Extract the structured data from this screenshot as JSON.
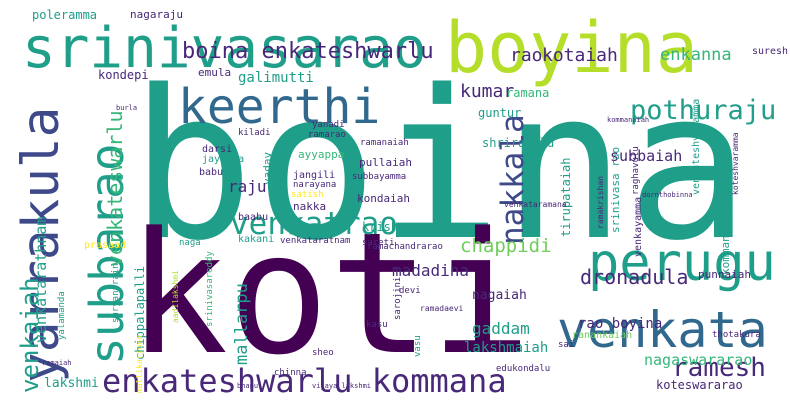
{
  "palette": {
    "background": "#ffffff",
    "purple_dark": "#440154",
    "purple": "#482878",
    "indigo": "#3e4989",
    "blue": "#31688e",
    "steel": "#26828e",
    "teal": "#1f9e89",
    "green": "#35b779",
    "lime": "#6ece58",
    "yellow_green": "#b5de2b",
    "yellow": "#fde725"
  },
  "words": [
    {
      "text": "boina",
      "color": "teal"
    },
    {
      "text": "koti",
      "color": "purple_dark"
    },
    {
      "text": "boyina",
      "color": "yellow_green"
    },
    {
      "text": "srinivasarao",
      "color": "teal"
    },
    {
      "text": "yarrakula",
      "color": "indigo"
    },
    {
      "text": "keerthi",
      "color": "blue"
    },
    {
      "text": "subbarao",
      "color": "teal"
    },
    {
      "text": "perugu",
      "color": "teal"
    },
    {
      "text": "venkata",
      "color": "blue"
    },
    {
      "text": "enkateshwarlu kommana",
      "color": "purple"
    },
    {
      "text": "venkatrao",
      "color": "teal"
    },
    {
      "text": "pothuraju",
      "color": "teal"
    },
    {
      "text": "nakkala",
      "color": "indigo"
    },
    {
      "text": "ramesh",
      "color": "purple"
    },
    {
      "text": "venkaiah",
      "color": "teal"
    },
    {
      "text": "boina enkateshwarlu",
      "color": "purple"
    },
    {
      "text": "venkateswarlu",
      "color": "green"
    },
    {
      "text": "dronadula",
      "color": "purple"
    },
    {
      "text": "nagaswararao",
      "color": "green"
    },
    {
      "text": "chappidi",
      "color": "lime"
    },
    {
      "text": "rao",
      "color": "purple"
    },
    {
      "text": "kotaiah",
      "color": "purple"
    },
    {
      "text": "enkanna",
      "color": "green"
    },
    {
      "text": "kumar",
      "color": "purple"
    },
    {
      "text": "galimutti",
      "color": "teal"
    },
    {
      "text": "venkatarathnam",
      "color": "teal"
    },
    {
      "text": "mallarpu",
      "color": "teal"
    },
    {
      "text": "gaddam",
      "color": "teal"
    },
    {
      "text": "lakshmaiah",
      "color": "teal"
    },
    {
      "text": "madadina",
      "color": "purple"
    },
    {
      "text": "rao boyina",
      "color": "purple"
    },
    {
      "text": "subbaiah",
      "color": "purple"
    },
    {
      "text": "raju",
      "color": "purple"
    },
    {
      "text": "suresh",
      "color": "purple"
    },
    {
      "text": "poleramma",
      "color": "teal"
    },
    {
      "text": "nagaraju",
      "color": "purple"
    },
    {
      "text": "kondepi",
      "color": "purple"
    },
    {
      "text": "emula",
      "color": "purple"
    },
    {
      "text": "ramana",
      "color": "green"
    },
    {
      "text": "guntur",
      "color": "teal"
    },
    {
      "text": "shriramulu",
      "color": "teal"
    },
    {
      "text": "krishna",
      "color": "teal"
    },
    {
      "text": "nagaiah",
      "color": "purple"
    },
    {
      "text": "lakshmi",
      "color": "teal"
    },
    {
      "text": "koteswararao",
      "color": "purple"
    },
    {
      "text": "chippalapalli",
      "color": "teal"
    },
    {
      "text": "ayyappa",
      "color": "green"
    },
    {
      "text": "pullaiah",
      "color": "purple"
    },
    {
      "text": "kondaiah",
      "color": "purple"
    },
    {
      "text": "tirupataiah",
      "color": "teal"
    },
    {
      "text": "srinivasa rao",
      "color": "teal"
    },
    {
      "text": "kommanaboyina",
      "color": "teal"
    },
    {
      "text": "punnaiah",
      "color": "purple"
    },
    {
      "text": "venkayamma",
      "color": "purple"
    },
    {
      "text": "venkateshvaramma",
      "color": "teal"
    },
    {
      "text": "yadav",
      "color": "teal"
    },
    {
      "text": "nakka",
      "color": "purple"
    },
    {
      "text": "jangili",
      "color": "purple"
    },
    {
      "text": "darsi",
      "color": "purple"
    },
    {
      "text": "jayamma",
      "color": "teal"
    },
    {
      "text": "babu",
      "color": "purple"
    },
    {
      "text": "baabu",
      "color": "purple"
    },
    {
      "text": "satish",
      "color": "yellow"
    },
    {
      "text": "kakani",
      "color": "teal"
    },
    {
      "text": "venkataratnam",
      "color": "purple"
    },
    {
      "text": "prasaad",
      "color": "yellow"
    },
    {
      "text": "sareti",
      "color": "purple"
    },
    {
      "text": "naga",
      "color": "teal"
    },
    {
      "text": "ranankaiah",
      "color": "lime"
    },
    {
      "text": "thotakura",
      "color": "purple"
    },
    {
      "text": "devi",
      "color": "purple"
    },
    {
      "text": "sarojini",
      "color": "purple"
    },
    {
      "text": "kasu",
      "color": "purple"
    },
    {
      "text": "vasu",
      "color": "teal"
    },
    {
      "text": "edukondalu",
      "color": "purple"
    },
    {
      "text": "chinna",
      "color": "purple"
    },
    {
      "text": "suryanarain",
      "color": "teal"
    },
    {
      "text": "srinivasareddy",
      "color": "green"
    },
    {
      "text": "kiladi",
      "color": "purple"
    },
    {
      "text": "yanadi",
      "color": "purple"
    },
    {
      "text": "ramarao",
      "color": "purple"
    },
    {
      "text": "narayana",
      "color": "purple"
    },
    {
      "text": "ramanaiah",
      "color": "purple"
    },
    {
      "text": "subbayamma",
      "color": "purple"
    },
    {
      "text": "ramachandrarao",
      "color": "purple"
    },
    {
      "text": "raghavulu",
      "color": "purple"
    },
    {
      "text": "venkataramana",
      "color": "purple"
    },
    {
      "text": "ramakrishan",
      "color": "purple"
    },
    {
      "text": "koteshvaramma",
      "color": "purple"
    },
    {
      "text": "ramadaevi",
      "color": "purple"
    },
    {
      "text": "yalamanda",
      "color": "teal"
    },
    {
      "text": "aadilakshmi",
      "color": "yellow_green"
    },
    {
      "text": "mallikarjuna",
      "color": "yellow"
    },
    {
      "text": "sai",
      "color": "purple"
    },
    {
      "text": "sheo",
      "color": "purple"
    },
    {
      "text": "vijaya lakshmi",
      "color": "purple"
    },
    {
      "text": "burla",
      "color": "purple"
    },
    {
      "text": "kommanaiah",
      "color": "purple"
    },
    {
      "text": "dornthobinna",
      "color": "purple"
    },
    {
      "text": "bhanu",
      "color": "purple"
    },
    {
      "text": "ramaiah",
      "color": "purple"
    }
  ]
}
